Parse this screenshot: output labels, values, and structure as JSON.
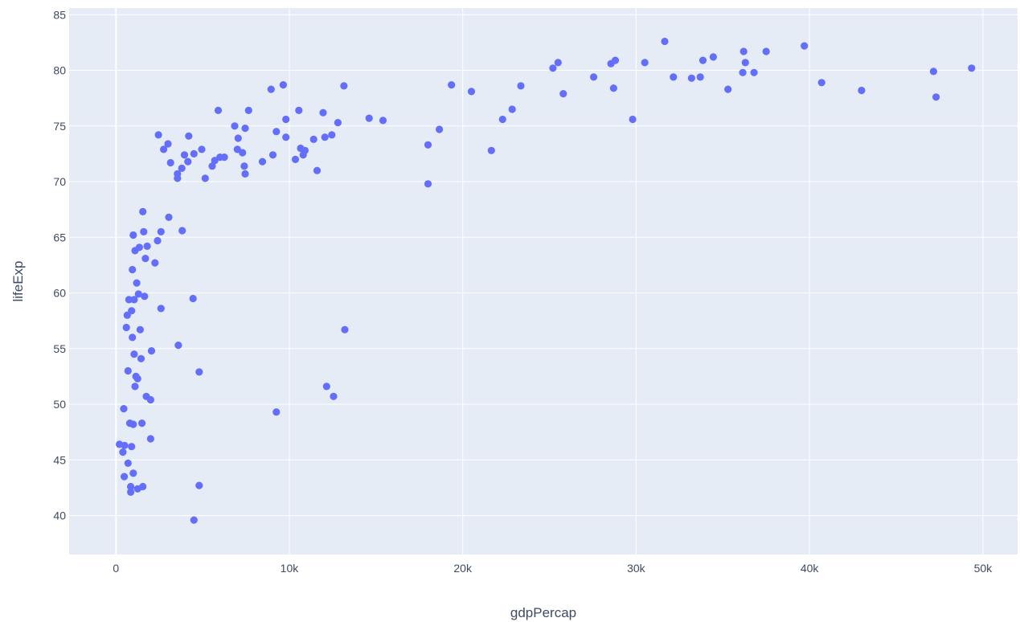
{
  "chart_data": {
    "type": "scatter",
    "title": "",
    "xlabel": "gdpPercap",
    "ylabel": "lifeExp",
    "xlim": [
      -2700,
      52000
    ],
    "ylim": [
      36.5,
      85.6
    ],
    "x_ticks": [
      0,
      10000,
      20000,
      30000,
      40000,
      50000
    ],
    "x_tick_labels": [
      "0",
      "10k",
      "20k",
      "30k",
      "40k",
      "50k"
    ],
    "y_ticks": [
      40,
      45,
      50,
      55,
      60,
      65,
      70,
      75,
      80,
      85
    ],
    "y_tick_labels": [
      "40",
      "45",
      "50",
      "55",
      "60",
      "65",
      "70",
      "75",
      "80",
      "85"
    ],
    "grid": true,
    "colors": {
      "plot_bg": "#e5ecf6",
      "point": "#636efa",
      "grid": "#ffffff",
      "text": "#3f4b62"
    },
    "points": [
      {
        "x": 200,
        "y": 46.4
      },
      {
        "x": 400,
        "y": 45.7
      },
      {
        "x": 450,
        "y": 49.6
      },
      {
        "x": 480,
        "y": 43.5
      },
      {
        "x": 500,
        "y": 46.3
      },
      {
        "x": 600,
        "y": 56.9
      },
      {
        "x": 650,
        "y": 58.0
      },
      {
        "x": 700,
        "y": 53.0
      },
      {
        "x": 700,
        "y": 44.7
      },
      {
        "x": 750,
        "y": 59.4
      },
      {
        "x": 800,
        "y": 48.3
      },
      {
        "x": 850,
        "y": 42.1
      },
      {
        "x": 850,
        "y": 42.6
      },
      {
        "x": 900,
        "y": 46.2
      },
      {
        "x": 900,
        "y": 58.4
      },
      {
        "x": 950,
        "y": 62.1
      },
      {
        "x": 950,
        "y": 56.0
      },
      {
        "x": 1000,
        "y": 48.2
      },
      {
        "x": 1000,
        "y": 43.8
      },
      {
        "x": 1000,
        "y": 65.2
      },
      {
        "x": 1050,
        "y": 59.4
      },
      {
        "x": 1050,
        "y": 54.5
      },
      {
        "x": 1100,
        "y": 51.6
      },
      {
        "x": 1100,
        "y": 63.8
      },
      {
        "x": 1150,
        "y": 52.5
      },
      {
        "x": 1200,
        "y": 60.9
      },
      {
        "x": 1250,
        "y": 52.3
      },
      {
        "x": 1250,
        "y": 42.4
      },
      {
        "x": 1300,
        "y": 59.9
      },
      {
        "x": 1350,
        "y": 64.1
      },
      {
        "x": 1400,
        "y": 56.7
      },
      {
        "x": 1450,
        "y": 54.1
      },
      {
        "x": 1500,
        "y": 48.3
      },
      {
        "x": 1550,
        "y": 42.6
      },
      {
        "x": 1550,
        "y": 67.3
      },
      {
        "x": 1600,
        "y": 65.5
      },
      {
        "x": 1650,
        "y": 59.7
      },
      {
        "x": 1700,
        "y": 63.1
      },
      {
        "x": 1750,
        "y": 50.7
      },
      {
        "x": 1800,
        "y": 64.2
      },
      {
        "x": 2000,
        "y": 50.4
      },
      {
        "x": 2000,
        "y": 46.9
      },
      {
        "x": 2050,
        "y": 54.8
      },
      {
        "x": 2250,
        "y": 62.7
      },
      {
        "x": 2400,
        "y": 64.7
      },
      {
        "x": 2450,
        "y": 74.2
      },
      {
        "x": 2600,
        "y": 58.6
      },
      {
        "x": 2600,
        "y": 65.5
      },
      {
        "x": 2750,
        "y": 72.9
      },
      {
        "x": 3000,
        "y": 73.4
      },
      {
        "x": 3050,
        "y": 66.8
      },
      {
        "x": 3150,
        "y": 71.7
      },
      {
        "x": 3550,
        "y": 70.7
      },
      {
        "x": 3550,
        "y": 70.3
      },
      {
        "x": 3600,
        "y": 55.3
      },
      {
        "x": 3800,
        "y": 71.2
      },
      {
        "x": 3820,
        "y": 65.6
      },
      {
        "x": 3950,
        "y": 72.4
      },
      {
        "x": 4150,
        "y": 71.8
      },
      {
        "x": 4200,
        "y": 74.1
      },
      {
        "x": 4450,
        "y": 59.5
      },
      {
        "x": 4500,
        "y": 72.5
      },
      {
        "x": 4500,
        "y": 39.6
      },
      {
        "x": 4800,
        "y": 52.9
      },
      {
        "x": 4800,
        "y": 42.7
      },
      {
        "x": 4950,
        "y": 72.9
      },
      {
        "x": 5150,
        "y": 70.3
      },
      {
        "x": 5550,
        "y": 71.4
      },
      {
        "x": 5700,
        "y": 71.9
      },
      {
        "x": 5900,
        "y": 76.4
      },
      {
        "x": 6000,
        "y": 72.2
      },
      {
        "x": 6250,
        "y": 72.2
      },
      {
        "x": 6850,
        "y": 75.0
      },
      {
        "x": 7000,
        "y": 72.9
      },
      {
        "x": 7050,
        "y": 73.9
      },
      {
        "x": 7300,
        "y": 72.6
      },
      {
        "x": 7400,
        "y": 71.4
      },
      {
        "x": 7450,
        "y": 70.7
      },
      {
        "x": 7450,
        "y": 74.8
      },
      {
        "x": 7650,
        "y": 76.4
      },
      {
        "x": 8450,
        "y": 71.8
      },
      {
        "x": 8950,
        "y": 78.3
      },
      {
        "x": 9050,
        "y": 72.4
      },
      {
        "x": 9250,
        "y": 74.5
      },
      {
        "x": 9250,
        "y": 49.3
      },
      {
        "x": 9650,
        "y": 78.7
      },
      {
        "x": 9800,
        "y": 75.6
      },
      {
        "x": 9800,
        "y": 74.0
      },
      {
        "x": 10350,
        "y": 72.0
      },
      {
        "x": 10550,
        "y": 76.4
      },
      {
        "x": 10650,
        "y": 73.0
      },
      {
        "x": 10800,
        "y": 72.4
      },
      {
        "x": 10900,
        "y": 72.8
      },
      {
        "x": 11400,
        "y": 73.8
      },
      {
        "x": 11600,
        "y": 71.0
      },
      {
        "x": 11950,
        "y": 76.2
      },
      {
        "x": 12050,
        "y": 74.0
      },
      {
        "x": 12150,
        "y": 51.6
      },
      {
        "x": 12450,
        "y": 74.2
      },
      {
        "x": 12550,
        "y": 50.7
      },
      {
        "x": 12800,
        "y": 75.3
      },
      {
        "x": 13150,
        "y": 78.6
      },
      {
        "x": 13200,
        "y": 56.7
      },
      {
        "x": 14600,
        "y": 75.7
      },
      {
        "x": 15400,
        "y": 75.5
      },
      {
        "x": 18000,
        "y": 73.3
      },
      {
        "x": 18000,
        "y": 69.8
      },
      {
        "x": 18650,
        "y": 74.7
      },
      {
        "x": 19350,
        "y": 78.7
      },
      {
        "x": 20500,
        "y": 78.1
      },
      {
        "x": 21650,
        "y": 72.8
      },
      {
        "x": 22300,
        "y": 75.6
      },
      {
        "x": 22850,
        "y": 76.5
      },
      {
        "x": 23350,
        "y": 78.6
      },
      {
        "x": 25200,
        "y": 80.2
      },
      {
        "x": 25500,
        "y": 80.7
      },
      {
        "x": 25800,
        "y": 77.9
      },
      {
        "x": 27550,
        "y": 79.4
      },
      {
        "x": 28550,
        "y": 80.6
      },
      {
        "x": 28700,
        "y": 78.4
      },
      {
        "x": 28800,
        "y": 80.9
      },
      {
        "x": 29800,
        "y": 75.6
      },
      {
        "x": 30500,
        "y": 80.7
      },
      {
        "x": 31650,
        "y": 82.6
      },
      {
        "x": 32150,
        "y": 79.4
      },
      {
        "x": 33200,
        "y": 79.3
      },
      {
        "x": 33700,
        "y": 79.4
      },
      {
        "x": 33850,
        "y": 80.9
      },
      {
        "x": 34450,
        "y": 81.2
      },
      {
        "x": 35300,
        "y": 78.3
      },
      {
        "x": 36150,
        "y": 79.8
      },
      {
        "x": 36200,
        "y": 81.7
      },
      {
        "x": 36300,
        "y": 80.7
      },
      {
        "x": 36800,
        "y": 79.8
      },
      {
        "x": 37500,
        "y": 81.7
      },
      {
        "x": 39700,
        "y": 82.2
      },
      {
        "x": 40700,
        "y": 78.9
      },
      {
        "x": 43000,
        "y": 78.2
      },
      {
        "x": 47150,
        "y": 79.9
      },
      {
        "x": 47300,
        "y": 77.6
      },
      {
        "x": 49350,
        "y": 80.2
      }
    ]
  }
}
